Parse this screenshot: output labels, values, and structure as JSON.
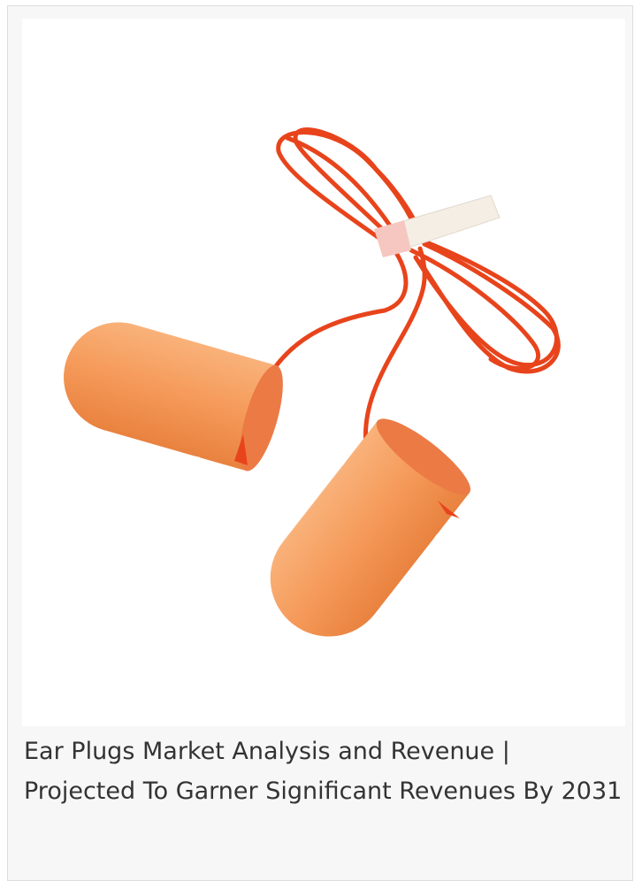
{
  "card": {
    "caption": "Ear Plugs Market Analysis and Revenue | Projected To Garner Significant Revenues By 2031"
  }
}
